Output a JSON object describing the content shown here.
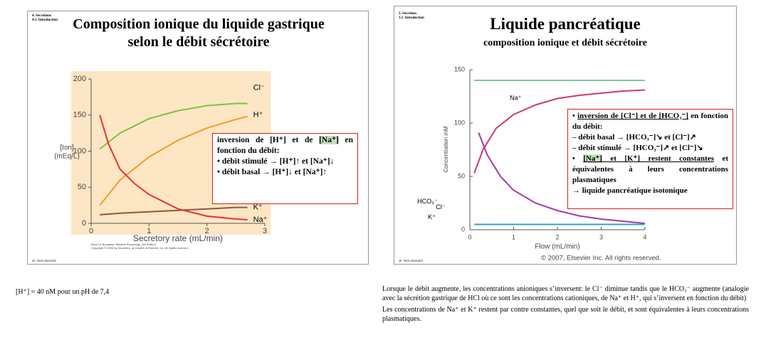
{
  "slides": [
    {
      "header": [
        "4. Sécrétions",
        "4.1. Introduction"
      ],
      "title": "Composition ionique du liquide gastrique selon le débit sécrétoire",
      "box": [
        [
          "inversion de [H⁺] et de ",
          "[Na⁺]",
          " en fonction du débit:"
        ],
        [
          "• débit stimulé → [H⁺]↑ et [Na⁺]↓"
        ],
        [
          "• débit basal → [H⁺]↓ et [Na⁺]↑"
        ]
      ],
      "footer": "45 - BAN 2024/2025"
    },
    {
      "header": [
        "3. Sécrétion",
        "3.1. Introduction"
      ],
      "title": "Liquide pancréatique",
      "subtitle": "composition ionique et débit sécrétoire",
      "box": [
        [
          "• ",
          "inversion de [Cl⁻] et de [HCO₃⁻]",
          " en fonction du débit:"
        ],
        [
          "– débit basal → [HCO₃⁻]↘ et [Cl⁻]↗"
        ],
        [
          "– débit stimulé → [HCO₃⁻]↗ et [Cl⁻]↘"
        ],
        [
          "• ",
          "[Na⁺]",
          " et [K⁺] restent constantes",
          " et équivalentes à leurs concentrations plasmatiques"
        ],
        [
          "→ liquide pancréatique isotonique"
        ]
      ],
      "footer": "28 - BAN 2024/2025"
    }
  ],
  "notes": {
    "left": "[H⁺] = 40 nM pour un pH de 7,4",
    "right": [
      "Lorsque le débit augmente, les concentrations anioniques s’inversent: le Cl⁻ diminue tandis que le HCO₃⁻ augmente (analogie avec la sécrétion gastrique de HCl où ce sont les concentrations cationiques, de Na⁺ et H⁺, qui s’inversent en fonction du débit)",
      "Les concentrations de Na⁺ et K⁺ restent par contre constantes, quel que soit le débit, et sont équivalentes à leurs concentrations plasmatiques."
    ]
  },
  "chart_data": [
    {
      "type": "line",
      "x_label": "Secretory rate (mL/min)",
      "y_label": [
        "[Ion]",
        "(mEq/L)"
      ],
      "source": [
        "Boron & Boulpaep: Medical Physiology, 2nd Edition.",
        "Copyright © 2005 by Saunders, an imprint of Elsevier, Inc. All rights reserved."
      ],
      "xlim": [
        0,
        3
      ],
      "xticks": [
        0,
        1,
        2,
        3
      ],
      "ylim": [
        0,
        200
      ],
      "yticks": [
        0,
        50,
        100,
        150,
        200
      ],
      "series": [
        {
          "name": "Cl⁻",
          "color": "#7cc242",
          "x": [
            0.15,
            0.5,
            1,
            1.5,
            2,
            2.5,
            2.7
          ],
          "values": [
            103,
            125,
            145,
            156,
            163,
            166,
            166
          ]
        },
        {
          "name": "H⁺",
          "color": "#f39a2b",
          "x": [
            0.15,
            0.5,
            1,
            1.5,
            2,
            2.5,
            2.7
          ],
          "values": [
            25,
            60,
            92,
            115,
            132,
            144,
            148
          ]
        },
        {
          "name": "K⁺",
          "color": "#8b5a3c",
          "x": [
            0.15,
            0.5,
            1,
            1.5,
            2,
            2.5,
            2.7
          ],
          "values": [
            12,
            14,
            16,
            18,
            20,
            22,
            22
          ]
        },
        {
          "name": "Na⁺",
          "color": "#e8303a",
          "x": [
            0.15,
            0.3,
            0.5,
            0.75,
            1,
            1.5,
            2,
            2.5,
            2.7
          ],
          "values": [
            150,
            110,
            75,
            55,
            40,
            20,
            10,
            6,
            5
          ]
        }
      ]
    },
    {
      "type": "line",
      "x_label": "Flow (mL/min)",
      "y_label": [
        "Concentration mM"
      ],
      "source": [
        "© 2007, Elsevier Inc. All rights reserved."
      ],
      "xlim": [
        0,
        4
      ],
      "xticks": [
        0,
        1,
        2,
        3,
        4
      ],
      "ylim": [
        0,
        150
      ],
      "yticks": [
        0,
        50,
        100,
        150
      ],
      "series": [
        {
          "name": "Na⁺",
          "color": "#7fc79a",
          "x": [
            0.1,
            4
          ],
          "values": [
            140,
            140
          ]
        },
        {
          "name": "HCO₃⁻",
          "color": "#cc3a6a",
          "x": [
            0.1,
            0.3,
            0.6,
            1,
            1.5,
            2,
            2.5,
            3,
            3.5,
            4
          ],
          "values": [
            53,
            75,
            95,
            108,
            117,
            123,
            126,
            128,
            130,
            131
          ]
        },
        {
          "name": "Cl⁻",
          "color": "#a23ca0",
          "x": [
            0.2,
            0.4,
            0.7,
            1,
            1.5,
            2,
            2.5,
            3,
            3.5,
            4
          ],
          "values": [
            91,
            70,
            50,
            37,
            25,
            18,
            13,
            10,
            8,
            6
          ]
        },
        {
          "name": "K⁺",
          "color": "#2aa7c4",
          "x": [
            0.1,
            4
          ],
          "values": [
            5,
            5
          ]
        }
      ]
    }
  ]
}
